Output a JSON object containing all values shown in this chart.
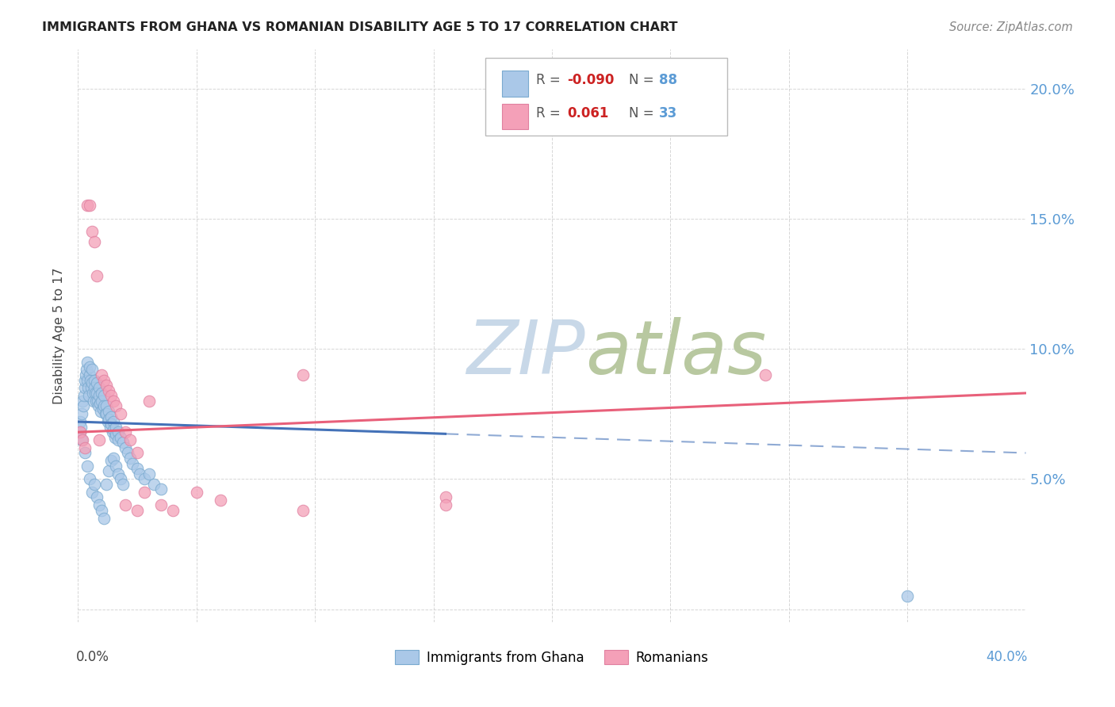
{
  "title": "IMMIGRANTS FROM GHANA VS ROMANIAN DISABILITY AGE 5 TO 17 CORRELATION CHART",
  "source": "Source: ZipAtlas.com",
  "ylabel": "Disability Age 5 to 17",
  "xlim": [
    0.0,
    0.4
  ],
  "ylim": [
    -0.005,
    0.215
  ],
  "yticks": [
    0.0,
    0.05,
    0.1,
    0.15,
    0.2
  ],
  "ytick_right_labels": [
    "",
    "5.0%",
    "10.0%",
    "15.0%",
    "20.0%"
  ],
  "xticks": [
    0.0,
    0.05,
    0.1,
    0.15,
    0.2,
    0.25,
    0.3,
    0.35,
    0.4
  ],
  "ghana_color": "#aac8e8",
  "romanian_color": "#f4a0b8",
  "ghana_edge_color": "#7aaacf",
  "romanian_edge_color": "#e080a0",
  "ghana_line_color": "#4472b8",
  "romanian_line_color": "#e8607a",
  "right_axis_color": "#5b9bd5",
  "grid_color": "#cccccc",
  "title_color": "#222222",
  "label_color": "#444444",
  "watermark_zip_color": "#c8d8e8",
  "watermark_atlas_color": "#b8c8a0",
  "ghana_R": -0.09,
  "ghana_N": 88,
  "romanian_R": 0.061,
  "romanian_N": 33,
  "ghana_trend_start_y": 0.072,
  "ghana_trend_end_y": 0.06,
  "ghana_trend_solid_end_x": 0.155,
  "romanian_trend_start_y": 0.068,
  "romanian_trend_end_y": 0.083,
  "ghana_x": [
    0.0008,
    0.001,
    0.0012,
    0.0014,
    0.0016,
    0.002,
    0.0022,
    0.0025,
    0.003,
    0.003,
    0.0032,
    0.0035,
    0.004,
    0.004,
    0.0042,
    0.0045,
    0.005,
    0.005,
    0.0052,
    0.0055,
    0.006,
    0.006,
    0.0062,
    0.0065,
    0.007,
    0.007,
    0.0072,
    0.0075,
    0.008,
    0.008,
    0.0082,
    0.0085,
    0.009,
    0.009,
    0.0092,
    0.0095,
    0.01,
    0.01,
    0.0105,
    0.011,
    0.011,
    0.0115,
    0.012,
    0.012,
    0.0125,
    0.013,
    0.013,
    0.0135,
    0.014,
    0.014,
    0.0145,
    0.015,
    0.015,
    0.0155,
    0.016,
    0.016,
    0.017,
    0.017,
    0.018,
    0.019,
    0.02,
    0.021,
    0.022,
    0.023,
    0.025,
    0.026,
    0.028,
    0.03,
    0.032,
    0.035,
    0.003,
    0.004,
    0.005,
    0.006,
    0.007,
    0.008,
    0.009,
    0.01,
    0.35,
    0.011,
    0.012,
    0.013,
    0.014,
    0.015,
    0.016,
    0.017,
    0.018,
    0.019
  ],
  "ghana_y": [
    0.068,
    0.072,
    0.07,
    0.075,
    0.065,
    0.08,
    0.078,
    0.082,
    0.085,
    0.088,
    0.09,
    0.092,
    0.088,
    0.095,
    0.085,
    0.082,
    0.09,
    0.093,
    0.088,
    0.085,
    0.092,
    0.087,
    0.083,
    0.08,
    0.088,
    0.085,
    0.083,
    0.08,
    0.087,
    0.083,
    0.08,
    0.078,
    0.085,
    0.082,
    0.079,
    0.076,
    0.083,
    0.08,
    0.077,
    0.082,
    0.078,
    0.075,
    0.078,
    0.075,
    0.072,
    0.076,
    0.073,
    0.07,
    0.074,
    0.071,
    0.068,
    0.072,
    0.069,
    0.066,
    0.07,
    0.067,
    0.068,
    0.065,
    0.066,
    0.064,
    0.062,
    0.06,
    0.058,
    0.056,
    0.054,
    0.052,
    0.05,
    0.052,
    0.048,
    0.046,
    0.06,
    0.055,
    0.05,
    0.045,
    0.048,
    0.043,
    0.04,
    0.038,
    0.005,
    0.035,
    0.048,
    0.053,
    0.057,
    0.058,
    0.055,
    0.052,
    0.05,
    0.048
  ],
  "romanian_x": [
    0.001,
    0.002,
    0.003,
    0.004,
    0.005,
    0.006,
    0.007,
    0.008,
    0.009,
    0.01,
    0.011,
    0.012,
    0.013,
    0.014,
    0.015,
    0.016,
    0.018,
    0.02,
    0.022,
    0.025,
    0.028,
    0.03,
    0.035,
    0.04,
    0.05,
    0.06,
    0.095,
    0.155,
    0.29,
    0.095,
    0.155,
    0.02,
    0.025
  ],
  "romanian_y": [
    0.068,
    0.065,
    0.062,
    0.155,
    0.155,
    0.145,
    0.141,
    0.128,
    0.065,
    0.09,
    0.088,
    0.086,
    0.084,
    0.082,
    0.08,
    0.078,
    0.075,
    0.068,
    0.065,
    0.06,
    0.045,
    0.08,
    0.04,
    0.038,
    0.045,
    0.042,
    0.09,
    0.043,
    0.09,
    0.038,
    0.04,
    0.04,
    0.038
  ]
}
